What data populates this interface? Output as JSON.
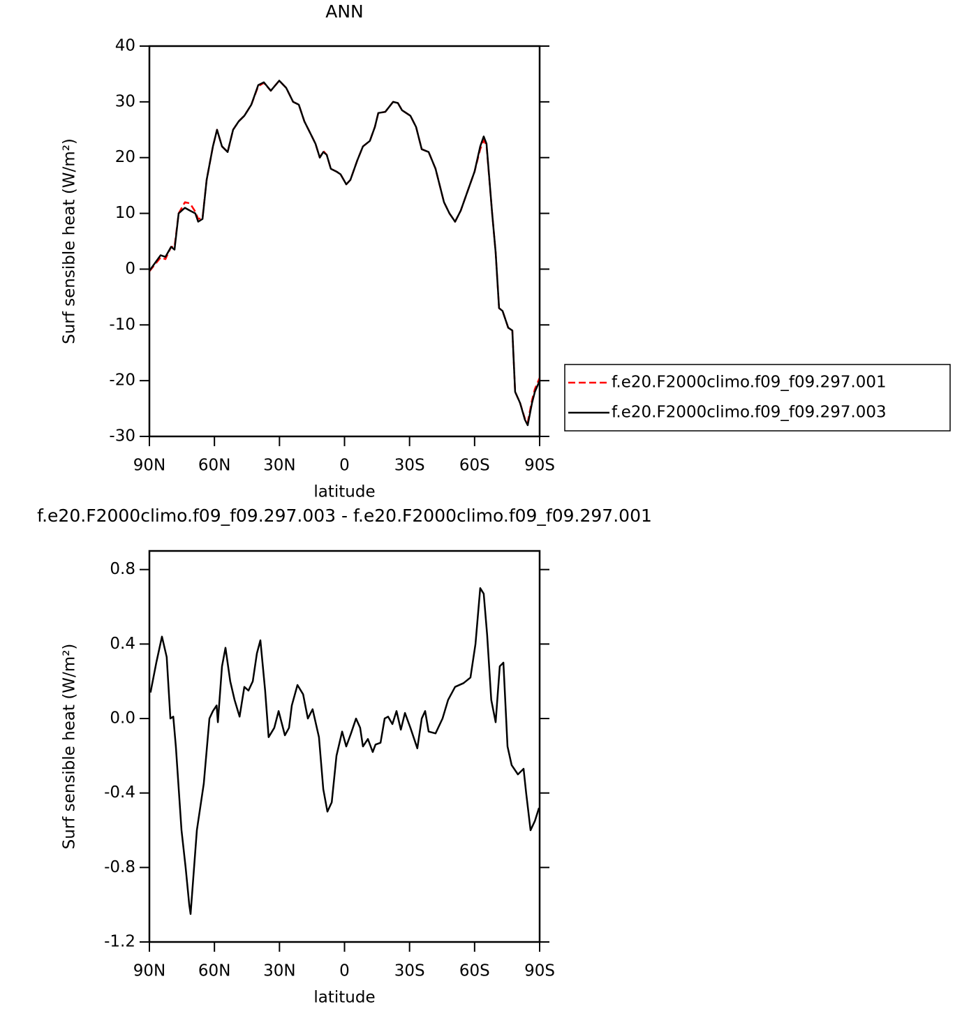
{
  "chart_data": [
    {
      "type": "line",
      "title": "ANN",
      "xlabel": "latitude",
      "ylabel": "Surf sensible heat (W/m²)",
      "x": [
        90,
        84.8,
        82.6,
        80,
        78.4,
        76.5,
        73.6,
        71.3,
        68.8,
        67.5,
        65.5,
        63.6,
        60.7,
        58.8,
        56.5,
        53.9,
        51.4,
        48.8,
        46.2,
        43,
        39.8,
        37.2,
        34,
        30.1,
        26.9,
        23.7,
        21.1,
        18.5,
        15.3,
        13.4,
        11.4,
        9.8,
        8.2,
        6.3,
        3.7,
        1.8,
        -0.8,
        -2.7,
        -5.9,
        -8.5,
        -11.7,
        -14,
        -15.6,
        -18.8,
        -22.4,
        -24.6,
        -26.5,
        -30.4,
        -33,
        -35.6,
        -38.8,
        -42,
        -45.9,
        -48.4,
        -51,
        -53.6,
        -56.8,
        -60,
        -62.6,
        -64.2,
        -65.5,
        -68.1,
        -69.7,
        -71.3,
        -72.9,
        -75.5,
        -77.4,
        -78.7,
        -81,
        -83.2,
        -84.5,
        -86.5,
        -87.8,
        -90
      ],
      "series": [
        {
          "name": "f.e20.F2000climo.f09_f09.297.001",
          "color": "#ff0000",
          "dash": true,
          "values": [
            -0.4,
            2.1,
            1.8,
            4,
            4,
            10,
            12,
            11.8,
            10.3,
            9,
            9.2,
            16,
            22,
            25,
            22,
            21,
            25,
            26.5,
            27.5,
            29.5,
            32.8,
            33.4,
            32,
            33.8,
            32.5,
            30,
            29.5,
            26.5,
            24,
            22.5,
            20,
            21.2,
            20.5,
            18,
            17.5,
            17,
            15.2,
            16,
            19.5,
            22,
            23,
            25.5,
            28,
            28.2,
            30,
            29.8,
            28.5,
            27.5,
            25.5,
            21.5,
            21,
            18,
            12,
            10,
            8.5,
            10.5,
            14,
            17.5,
            21.5,
            23.1,
            22.2,
            10,
            3,
            -7,
            -7.5,
            -10.5,
            -11,
            -22,
            -24,
            -26.8,
            -27.5,
            -23.5,
            -21.5,
            -19.5
          ]
        },
        {
          "name": "f.e20.F2000climo.f09_f09.297.003",
          "color": "#000000",
          "dash": false,
          "values": [
            -0.3,
            2.5,
            2.2,
            4,
            3.5,
            10,
            11,
            10.5,
            10,
            8.5,
            9,
            16,
            22,
            25,
            22,
            21,
            25,
            26.5,
            27.5,
            29.5,
            33,
            33.5,
            32,
            33.8,
            32.5,
            30,
            29.5,
            26.5,
            24,
            22.5,
            20,
            21,
            20.5,
            18,
            17.5,
            17,
            15.2,
            16,
            19.5,
            22,
            23,
            25.5,
            28,
            28.2,
            30,
            29.8,
            28.5,
            27.5,
            25.5,
            21.5,
            21,
            18,
            12,
            10,
            8.5,
            10.5,
            14,
            17.5,
            22,
            23.8,
            22.5,
            10,
            3,
            -7,
            -7.5,
            -10.5,
            -11,
            -22,
            -24,
            -27,
            -28,
            -24,
            -22,
            -20
          ]
        }
      ],
      "xlim": [
        90,
        -90
      ],
      "xticks": [
        {
          "value": 90,
          "label": "90N"
        },
        {
          "value": 60,
          "label": "60N"
        },
        {
          "value": 30,
          "label": "30N"
        },
        0,
        {
          "value": -30,
          "label": "30S"
        },
        {
          "value": -60,
          "label": "60S"
        },
        {
          "value": -90,
          "label": "90S"
        }
      ],
      "ylim": [
        -30,
        40
      ],
      "yticks": [
        -30,
        -20,
        -10,
        0,
        10,
        20,
        30,
        40
      ],
      "legend": "right"
    },
    {
      "type": "line",
      "title": "f.e20.F2000climo.f09_f09.297.003 - f.e20.F2000climo.f09_f09.297.001",
      "xlabel": "latitude",
      "ylabel": "Surf sensible heat (W/m²)",
      "x": [
        89.5,
        86.8,
        84.2,
        82,
        80.3,
        79,
        77.8,
        75.2,
        73.3,
        71.6,
        71,
        68.1,
        64.9,
        62.3,
        60.7,
        59,
        58.4,
        56.5,
        54.9,
        52.7,
        50.7,
        48.4,
        46.2,
        44.3,
        42.3,
        40.4,
        38.8,
        36.6,
        35,
        32.4,
        30.4,
        27.5,
        25.6,
        24.3,
        21.7,
        19.1,
        16.9,
        14.7,
        11.8,
        9.8,
        7.9,
        5.9,
        3.7,
        1.1,
        -0.8,
        -3,
        -5.3,
        -7.2,
        -8.5,
        -10.8,
        -13,
        -14.3,
        -16.6,
        -18.5,
        -20.1,
        -22.1,
        -24,
        -26,
        -27.9,
        -30.4,
        -33.6,
        -35.6,
        -37.2,
        -38.8,
        -42,
        -45.2,
        -47.8,
        -51,
        -54.9,
        -58.1,
        -60.4,
        -62.6,
        -64.2,
        -65.8,
        -67.7,
        -69.7,
        -71.6,
        -73.3,
        -75.2,
        -77.1,
        -80,
        -82.6,
        -83.8,
        -85.8,
        -87.8,
        -89.7
      ],
      "series": [
        {
          "color": "#000000",
          "dash": false,
          "values": [
            0.14,
            0.3,
            0.44,
            0.33,
            0,
            0.01,
            -0.15,
            -0.6,
            -0.8,
            -1.0,
            -1.05,
            -0.6,
            -0.35,
            0,
            0.04,
            0.07,
            -0.02,
            0.28,
            0.38,
            0.2,
            0.1,
            0.01,
            0.17,
            0.15,
            0.2,
            0.35,
            0.42,
            0.15,
            -0.1,
            -0.05,
            0.04,
            -0.09,
            -0.05,
            0.07,
            0.18,
            0.13,
            0,
            0.05,
            -0.1,
            -0.38,
            -0.5,
            -0.45,
            -0.2,
            -0.07,
            -0.15,
            -0.08,
            0,
            -0.05,
            -0.15,
            -0.11,
            -0.18,
            -0.14,
            -0.13,
            0,
            0.01,
            -0.03,
            0.04,
            -0.06,
            0.03,
            -0.05,
            -0.16,
            0,
            0.04,
            -0.07,
            -0.08,
            0,
            0.1,
            0.17,
            0.19,
            0.22,
            0.4,
            0.7,
            0.67,
            0.45,
            0.1,
            -0.02,
            0.28,
            0.3,
            -0.15,
            -0.25,
            -0.3,
            -0.27,
            -0.4,
            -0.6,
            -0.55,
            -0.48
          ]
        }
      ],
      "xlim": [
        90,
        -90
      ],
      "xticks": [
        {
          "value": 90,
          "label": "90N"
        },
        {
          "value": 60,
          "label": "60N"
        },
        {
          "value": 30,
          "label": "30N"
        },
        0,
        {
          "value": -30,
          "label": "30S"
        },
        {
          "value": -60,
          "label": "60S"
        },
        {
          "value": -90,
          "label": "90S"
        }
      ],
      "ylim": [
        -1.2,
        0.9
      ],
      "yticks": [
        -1.2,
        -0.8,
        -0.4,
        {
          "value": 0,
          "label": "0.0"
        },
        0.4,
        0.8
      ]
    }
  ]
}
